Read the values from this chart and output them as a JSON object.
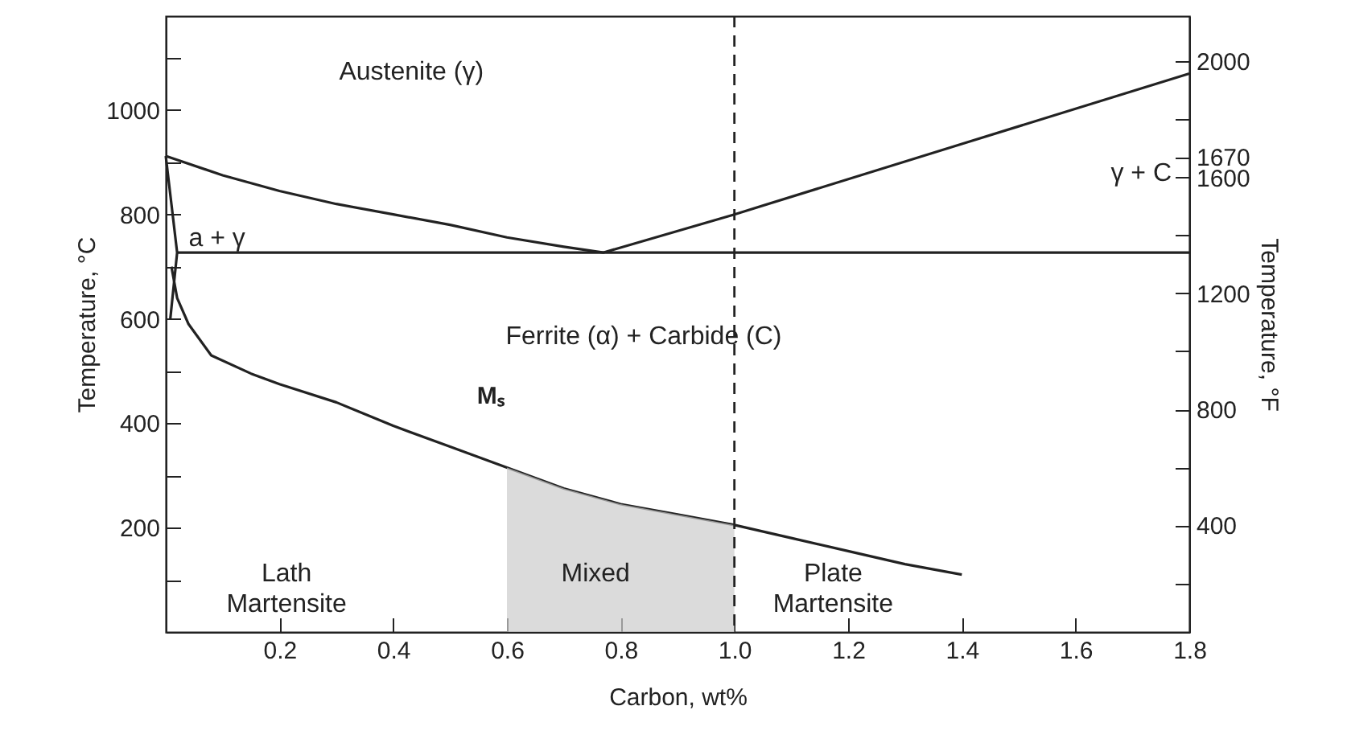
{
  "chart_data": {
    "type": "line",
    "xlabel": "Carbon, wt%",
    "ylabel": "Temperature, °C",
    "y2label": "Temperature, °F",
    "xlim": [
      0,
      1.8
    ],
    "xticks": [
      0.2,
      0.4,
      0.6,
      0.8,
      {
        "value": 1.0,
        "label": "1.0"
      },
      1.2,
      1.4,
      1.6,
      1.8
    ],
    "ylim": [
      0,
      1180
    ],
    "yticks": [
      {
        "value": 100,
        "label": null
      },
      200,
      {
        "value": 300,
        "label": null
      },
      400,
      {
        "value": 500,
        "label": null
      },
      600,
      {
        "value": 700,
        "label": null
      },
      800,
      {
        "value": 900,
        "label": null
      },
      1000,
      {
        "value": 1100,
        "label": null
      }
    ],
    "y2lim": [
      32,
      2156
    ],
    "y2ticks": [
      {
        "value": 200,
        "label": null
      },
      400,
      {
        "value": 600,
        "label": null
      },
      800,
      {
        "value": 1000,
        "label": null
      },
      1200,
      {
        "value": 1400,
        "label": null
      },
      1600,
      1670,
      {
        "value": 1800,
        "label": null
      },
      2000
    ],
    "grid": false,
    "marker": "none",
    "ref_lines": [
      {
        "axis": "x",
        "value": 1.0,
        "line_style": "dashed",
        "color": "#222222"
      }
    ],
    "series": [
      {
        "color": "#222222",
        "x": [
          0,
          0.1,
          0.2,
          0.3,
          0.4,
          0.5,
          0.6,
          0.7,
          0.77,
          1.0,
          1.4,
          1.8
        ],
        "values": [
          912,
          875,
          845,
          820,
          800,
          780,
          756,
          738,
          727,
          800,
          935,
          1070
        ]
      },
      {
        "color": "#222222",
        "x": [
          0.02,
          1.8
        ],
        "values": [
          727,
          727
        ]
      },
      {
        "color": "#222222",
        "x": [
          0,
          0.02,
          0.008
        ],
        "values": [
          912,
          727,
          600
        ]
      },
      {
        "color": "#222222",
        "x": [
          0.01,
          0.02,
          0.04,
          0.08,
          0.15,
          0.2,
          0.3,
          0.4,
          0.5,
          0.6,
          0.7,
          0.8,
          0.9,
          1.0,
          1.1,
          1.2,
          1.3,
          1.4
        ],
        "values": [
          700,
          640,
          590,
          530,
          495,
          475,
          440,
          395,
          355,
          315,
          275,
          245,
          225,
          205,
          180,
          155,
          130,
          110
        ]
      },
      {
        "type": "area",
        "color": "#cccccc",
        "x": [
          0.6,
          0.7,
          0.8,
          0.9,
          1.0
        ],
        "values": [
          315,
          275,
          245,
          225,
          205
        ]
      }
    ],
    "annotations": [
      "Austenite (γ)",
      "a + γ",
      "γ + C",
      "Ferrite (α) + Carbide (C)",
      {
        "text": "Mₛ",
        "x": 0.47,
        "y": 367
      },
      "Lath\nMartensite",
      "Mixed",
      "Plate\nMartensite"
    ]
  }
}
